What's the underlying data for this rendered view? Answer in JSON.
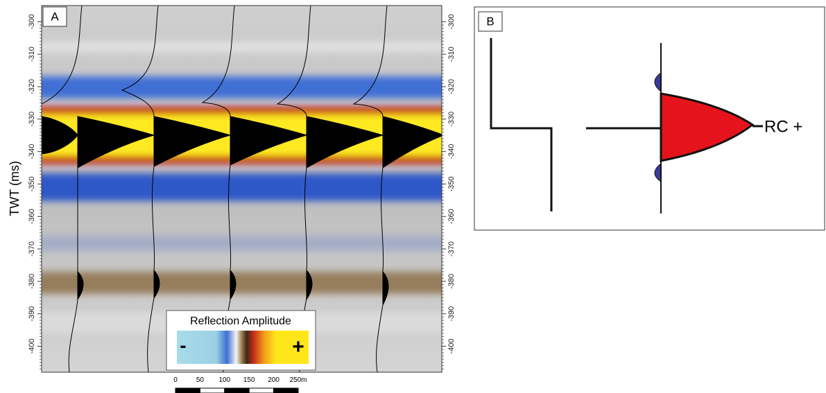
{
  "panel_a": {
    "label": "A",
    "y_axis_label": "TWT (ms)",
    "ylim": [
      -295,
      -408
    ],
    "left_ticks": [
      -300,
      -310,
      -320,
      -330,
      -340,
      -350,
      -360,
      -370,
      -380,
      -390,
      -400
    ],
    "right_ticks": [
      -300,
      -310,
      -320,
      -330,
      -340,
      -350,
      -360,
      -370,
      -380,
      -390,
      -400
    ],
    "legend": {
      "title": "Reflection Amplitude",
      "minus": "-",
      "plus": "+"
    },
    "scale_bar": {
      "ticks": [
        0,
        50,
        100,
        150,
        200,
        {
          "value": 250,
          "label": "250m"
        }
      ]
    }
  },
  "panel_b": {
    "label": "B",
    "annotation": "RC +"
  }
}
